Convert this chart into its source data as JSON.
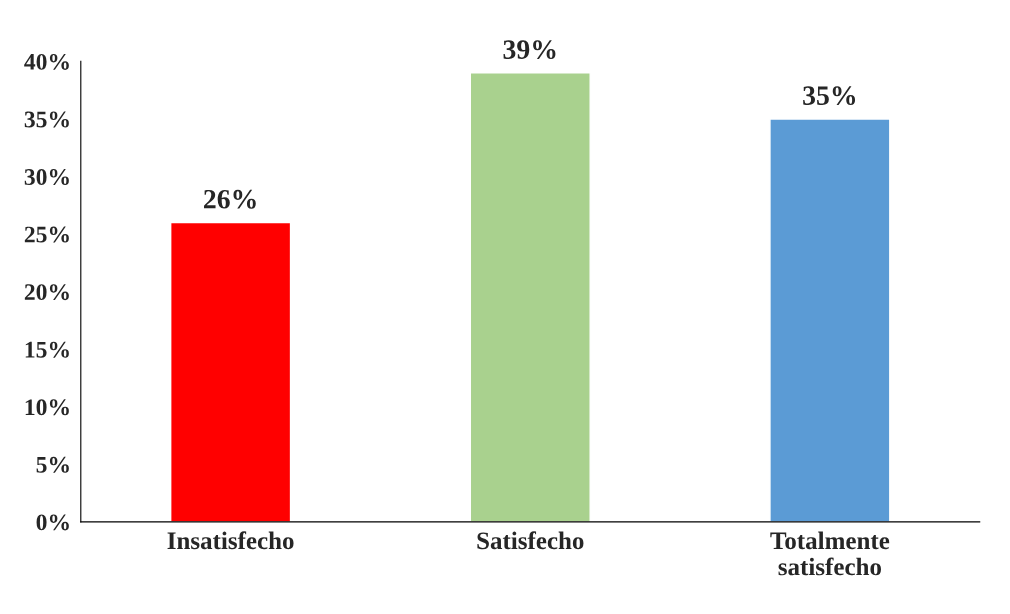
{
  "chart_data": {
    "type": "bar",
    "categories": [
      "Insatisfecho",
      "Satisfecho",
      "Totalmente satisfecho"
    ],
    "values": [
      26,
      39,
      35
    ],
    "colors": [
      "#ff0000",
      "#a9d18e",
      "#5b9bd5"
    ],
    "value_labels": [
      "26%",
      "39%",
      "35%"
    ],
    "ylim": [
      0,
      40
    ],
    "yticks": [
      {
        "value": 0,
        "label": "0%"
      },
      {
        "value": 5,
        "label": "5%"
      },
      {
        "value": 10,
        "label": "10%"
      },
      {
        "value": 15,
        "label": "15%"
      },
      {
        "value": 20,
        "label": "20%"
      },
      {
        "value": 25,
        "label": "25%"
      },
      {
        "value": 30,
        "label": "30%"
      },
      {
        "value": 35,
        "label": "35%"
      },
      {
        "value": 40,
        "label": "40%"
      }
    ],
    "grid": false,
    "legend": false
  }
}
